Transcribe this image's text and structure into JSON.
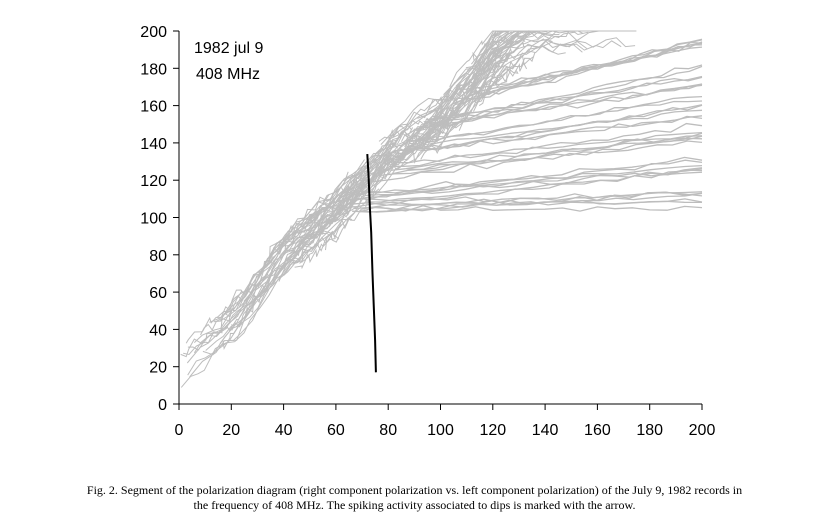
{
  "chart_data": {
    "type": "line",
    "title": "",
    "xlabel": "",
    "ylabel": "",
    "xlim": [
      0,
      200
    ],
    "ylim": [
      0,
      200
    ],
    "x_ticks": [
      0,
      20,
      40,
      60,
      80,
      100,
      120,
      140,
      160,
      180,
      200
    ],
    "y_ticks": [
      0,
      20,
      40,
      60,
      80,
      100,
      120,
      140,
      160,
      180,
      200
    ],
    "x_tick_labels": [
      "0",
      "20",
      "40",
      "60",
      "80",
      "100",
      "120",
      "140",
      "160",
      "180",
      "200"
    ],
    "y_tick_labels": [
      "0",
      "20",
      "40",
      "60",
      "80",
      "100",
      "120",
      "140",
      "160",
      "180",
      "200"
    ],
    "grid": false,
    "legend": "none",
    "annotation_lines": [
      "1982 jul 9",
      "408 MHz"
    ],
    "trace_color": "#bdbdbd",
    "marker_color": "#000000",
    "trace_profile": [
      {
        "x": 0,
        "y": 20
      },
      {
        "x": 10,
        "y": 30
      },
      {
        "x": 20,
        "y": 42
      },
      {
        "x": 30,
        "y": 60
      },
      {
        "x": 40,
        "y": 80
      },
      {
        "x": 50,
        "y": 92
      },
      {
        "x": 60,
        "y": 104
      },
      {
        "x": 70,
        "y": 118
      },
      {
        "x": 80,
        "y": 132
      },
      {
        "x": 90,
        "y": 142
      },
      {
        "x": 100,
        "y": 152
      },
      {
        "x": 110,
        "y": 166
      },
      {
        "x": 120,
        "y": 185
      },
      {
        "x": 130,
        "y": 196
      },
      {
        "x": 140,
        "y": 200
      }
    ],
    "diverging_branches": [
      {
        "from_x": 65,
        "from_y": 104,
        "to_x": 200,
        "to_y": 110
      },
      {
        "from_x": 70,
        "from_y": 110,
        "to_x": 200,
        "to_y": 128
      },
      {
        "from_x": 80,
        "from_y": 125,
        "to_x": 200,
        "to_y": 145
      },
      {
        "from_x": 90,
        "from_y": 138,
        "to_x": 200,
        "to_y": 160
      },
      {
        "from_x": 100,
        "from_y": 150,
        "to_x": 200,
        "to_y": 175
      },
      {
        "from_x": 110,
        "from_y": 165,
        "to_x": 200,
        "to_y": 191
      }
    ],
    "arrow_marker": [
      {
        "x": 72,
        "y": 134
      },
      {
        "x": 72.5,
        "y": 122
      },
      {
        "x": 73,
        "y": 105
      },
      {
        "x": 73.5,
        "y": 92
      },
      {
        "x": 74,
        "y": 70
      },
      {
        "x": 74.5,
        "y": 52
      },
      {
        "x": 75,
        "y": 34
      },
      {
        "x": 75.3,
        "y": 17
      }
    ]
  },
  "caption": {
    "line1": "Fig. 2. Segment of the polarization diagram (right component polarization vs. left component polarization) of the July 9, 1982 records in",
    "line2": "the frequency of 408 MHz. The spiking activity associated to dips is marked with the arrow."
  }
}
